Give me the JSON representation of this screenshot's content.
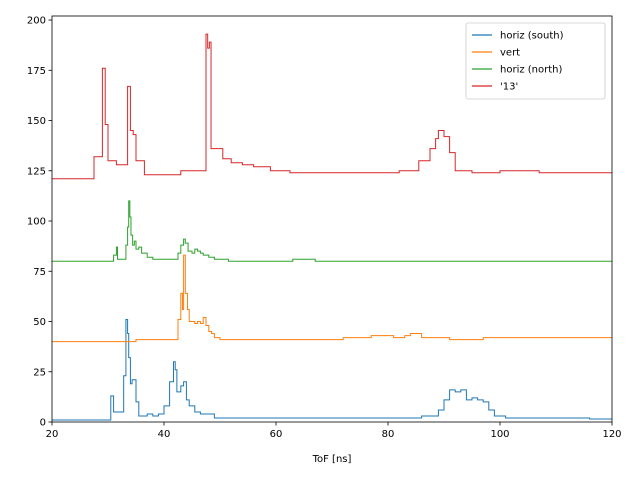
{
  "chart_data": {
    "type": "line",
    "drawstyle": "steps",
    "title": "",
    "xlabel": "ToF [ns]",
    "ylabel": "",
    "xlim": [
      20,
      120
    ],
    "ylim": [
      0,
      202
    ],
    "xticks": [
      20,
      40,
      60,
      80,
      100,
      120
    ],
    "yticks": [
      0,
      25,
      50,
      75,
      100,
      125,
      150,
      175,
      200
    ],
    "grid": false,
    "legend_position": "top-right",
    "series": [
      {
        "name": "horiz (south)",
        "color": "#1f77b4",
        "points": [
          [
            20,
            1
          ],
          [
            30.5,
            1
          ],
          [
            30.5,
            13
          ],
          [
            31,
            13
          ],
          [
            31,
            5
          ],
          [
            32.8,
            5
          ],
          [
            32.8,
            23
          ],
          [
            33.2,
            23
          ],
          [
            33.2,
            51
          ],
          [
            33.5,
            51
          ],
          [
            33.5,
            44
          ],
          [
            33.7,
            44
          ],
          [
            33.7,
            32
          ],
          [
            34,
            32
          ],
          [
            34,
            19
          ],
          [
            34.3,
            19
          ],
          [
            34.3,
            21
          ],
          [
            35,
            21
          ],
          [
            35,
            10
          ],
          [
            35.5,
            10
          ],
          [
            35.5,
            3
          ],
          [
            37,
            3
          ],
          [
            37,
            4
          ],
          [
            38,
            4
          ],
          [
            38,
            3
          ],
          [
            39,
            3
          ],
          [
            39,
            4
          ],
          [
            40,
            4
          ],
          [
            40,
            8
          ],
          [
            41,
            8
          ],
          [
            41,
            20
          ],
          [
            41.7,
            20
          ],
          [
            41.7,
            30
          ],
          [
            42,
            30
          ],
          [
            42,
            26
          ],
          [
            42.3,
            26
          ],
          [
            42.3,
            15
          ],
          [
            43,
            15
          ],
          [
            43,
            18
          ],
          [
            43.5,
            18
          ],
          [
            43.5,
            20
          ],
          [
            44,
            20
          ],
          [
            44,
            11
          ],
          [
            44.5,
            11
          ],
          [
            44.5,
            8
          ],
          [
            45.5,
            8
          ],
          [
            45.5,
            5
          ],
          [
            46.5,
            5
          ],
          [
            46.5,
            4
          ],
          [
            49,
            4
          ],
          [
            49,
            2
          ],
          [
            86,
            2
          ],
          [
            86,
            3
          ],
          [
            89,
            3
          ],
          [
            89,
            6
          ],
          [
            90,
            6
          ],
          [
            90,
            11
          ],
          [
            91,
            11
          ],
          [
            91,
            16
          ],
          [
            92,
            16
          ],
          [
            92,
            15
          ],
          [
            93,
            15
          ],
          [
            93,
            16
          ],
          [
            94,
            16
          ],
          [
            94,
            11
          ],
          [
            95,
            11
          ],
          [
            95,
            12
          ],
          [
            96,
            12
          ],
          [
            96,
            11
          ],
          [
            97,
            11
          ],
          [
            97,
            10
          ],
          [
            98,
            10
          ],
          [
            98,
            6
          ],
          [
            99,
            6
          ],
          [
            99,
            3
          ],
          [
            101,
            3
          ],
          [
            101,
            2
          ],
          [
            116,
            2
          ],
          [
            116,
            1.5
          ],
          [
            120,
            1.5
          ]
        ]
      },
      {
        "name": "vert",
        "color": "#ff7f0e",
        "points": [
          [
            20,
            40
          ],
          [
            35,
            40
          ],
          [
            35,
            41
          ],
          [
            42.5,
            41
          ],
          [
            42.5,
            51
          ],
          [
            43,
            51
          ],
          [
            43,
            64
          ],
          [
            43.3,
            64
          ],
          [
            43.3,
            56
          ],
          [
            43.5,
            56
          ],
          [
            43.5,
            83
          ],
          [
            43.8,
            83
          ],
          [
            43.8,
            64
          ],
          [
            44.2,
            64
          ],
          [
            44.2,
            56
          ],
          [
            44.5,
            56
          ],
          [
            44.5,
            50
          ],
          [
            45.5,
            50
          ],
          [
            45.5,
            49
          ],
          [
            46,
            49
          ],
          [
            46,
            50
          ],
          [
            46.5,
            50
          ],
          [
            46.5,
            49
          ],
          [
            47,
            49
          ],
          [
            47,
            52
          ],
          [
            47.5,
            52
          ],
          [
            47.5,
            48
          ],
          [
            48,
            48
          ],
          [
            48,
            45
          ],
          [
            48.5,
            45
          ],
          [
            48.5,
            44
          ],
          [
            49,
            44
          ],
          [
            49,
            42
          ],
          [
            50,
            42
          ],
          [
            50,
            41
          ],
          [
            72,
            41
          ],
          [
            72,
            42
          ],
          [
            77,
            42
          ],
          [
            77,
            43
          ],
          [
            81,
            43
          ],
          [
            81,
            42
          ],
          [
            83,
            42
          ],
          [
            83,
            43
          ],
          [
            84,
            43
          ],
          [
            84,
            44
          ],
          [
            86,
            44
          ],
          [
            86,
            42
          ],
          [
            91,
            42
          ],
          [
            91,
            41
          ],
          [
            97,
            41
          ],
          [
            97,
            42
          ],
          [
            120,
            42
          ]
        ]
      },
      {
        "name": "horiz (north)",
        "color": "#2ca02c",
        "points": [
          [
            20,
            80
          ],
          [
            31,
            80
          ],
          [
            31,
            83
          ],
          [
            31.5,
            83
          ],
          [
            31.5,
            87
          ],
          [
            31.7,
            87
          ],
          [
            31.7,
            81
          ],
          [
            33.2,
            81
          ],
          [
            33.2,
            88
          ],
          [
            33.5,
            88
          ],
          [
            33.5,
            97
          ],
          [
            33.7,
            97
          ],
          [
            33.7,
            110
          ],
          [
            33.9,
            110
          ],
          [
            33.9,
            102
          ],
          [
            34.1,
            102
          ],
          [
            34.1,
            93
          ],
          [
            34.4,
            93
          ],
          [
            34.4,
            88
          ],
          [
            34.7,
            88
          ],
          [
            34.7,
            90
          ],
          [
            35,
            90
          ],
          [
            35,
            86
          ],
          [
            35.5,
            86
          ],
          [
            35.5,
            87
          ],
          [
            36,
            87
          ],
          [
            36,
            84
          ],
          [
            37,
            84
          ],
          [
            37,
            82
          ],
          [
            38,
            82
          ],
          [
            38,
            81
          ],
          [
            42.5,
            81
          ],
          [
            42.5,
            84
          ],
          [
            43,
            84
          ],
          [
            43,
            88
          ],
          [
            43.5,
            88
          ],
          [
            43.5,
            91
          ],
          [
            43.8,
            91
          ],
          [
            43.8,
            89
          ],
          [
            44.3,
            89
          ],
          [
            44.3,
            85
          ],
          [
            45,
            85
          ],
          [
            45,
            84
          ],
          [
            45.5,
            84
          ],
          [
            45.5,
            86
          ],
          [
            46,
            86
          ],
          [
            46,
            85
          ],
          [
            46.5,
            85
          ],
          [
            46.5,
            84
          ],
          [
            47,
            84
          ],
          [
            47,
            83
          ],
          [
            48,
            83
          ],
          [
            48,
            82
          ],
          [
            49,
            82
          ],
          [
            49,
            81
          ],
          [
            51.5,
            81
          ],
          [
            51.5,
            80
          ],
          [
            63,
            80
          ],
          [
            63,
            81
          ],
          [
            67,
            81
          ],
          [
            67,
            80
          ],
          [
            120,
            80
          ]
        ]
      },
      {
        "name": "'13'",
        "color": "#d62728",
        "points": [
          [
            20,
            121
          ],
          [
            27.5,
            121
          ],
          [
            27.5,
            132
          ],
          [
            29,
            132
          ],
          [
            29,
            176
          ],
          [
            29.5,
            176
          ],
          [
            29.5,
            148
          ],
          [
            30,
            148
          ],
          [
            30,
            130
          ],
          [
            31.5,
            130
          ],
          [
            31.5,
            128
          ],
          [
            33.5,
            128
          ],
          [
            33.5,
            167
          ],
          [
            34,
            167
          ],
          [
            34,
            145
          ],
          [
            34.5,
            145
          ],
          [
            34.5,
            143
          ],
          [
            35,
            143
          ],
          [
            35,
            130
          ],
          [
            36.5,
            130
          ],
          [
            36.5,
            123
          ],
          [
            43,
            123
          ],
          [
            43,
            125
          ],
          [
            47.5,
            125
          ],
          [
            47.5,
            193
          ],
          [
            47.8,
            193
          ],
          [
            47.8,
            186
          ],
          [
            48.1,
            186
          ],
          [
            48.1,
            189
          ],
          [
            48.4,
            189
          ],
          [
            48.4,
            136
          ],
          [
            50.5,
            136
          ],
          [
            50.5,
            131
          ],
          [
            52,
            131
          ],
          [
            52,
            129
          ],
          [
            54,
            129
          ],
          [
            54,
            128
          ],
          [
            56,
            128
          ],
          [
            56,
            127
          ],
          [
            59,
            127
          ],
          [
            59,
            125
          ],
          [
            62.5,
            125
          ],
          [
            62.5,
            124
          ],
          [
            82,
            124
          ],
          [
            82,
            125
          ],
          [
            85.5,
            125
          ],
          [
            85.5,
            130
          ],
          [
            87.5,
            130
          ],
          [
            87.5,
            136
          ],
          [
            88.5,
            136
          ],
          [
            88.5,
            141
          ],
          [
            89,
            141
          ],
          [
            89,
            145
          ],
          [
            90,
            145
          ],
          [
            90,
            142
          ],
          [
            91,
            142
          ],
          [
            91,
            134
          ],
          [
            92,
            134
          ],
          [
            92,
            125
          ],
          [
            95,
            125
          ],
          [
            95,
            124
          ],
          [
            100,
            124
          ],
          [
            100,
            125
          ],
          [
            107,
            125
          ],
          [
            107,
            124
          ],
          [
            120,
            124
          ]
        ]
      }
    ]
  }
}
